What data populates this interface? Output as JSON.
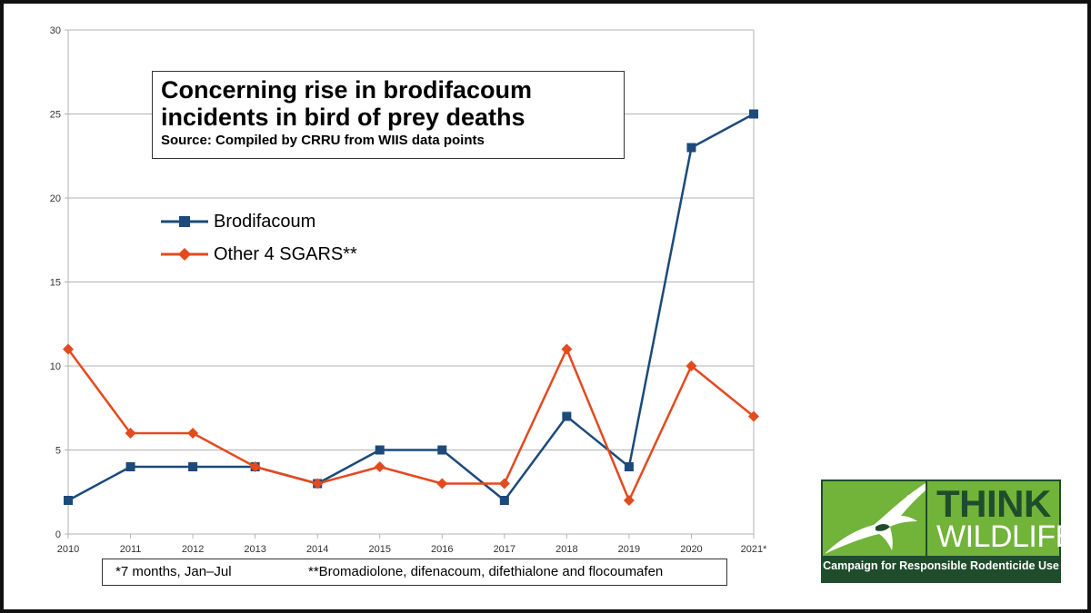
{
  "chart_data": {
    "type": "line",
    "title": "Concerning rise in brodifacoum incidents in bird of prey deaths",
    "title_lines": [
      "Concerning rise in brodifacoum",
      "incidents in bird of prey deaths"
    ],
    "subtitle": "Source: Compiled by CRRU from WIIS data points",
    "x": [
      "2010",
      "2011",
      "2012",
      "2013",
      "2014",
      "2015",
      "2016",
      "2017",
      "2018",
      "2019",
      "2020",
      "2021*"
    ],
    "y_ticks": [
      0,
      5,
      10,
      15,
      20,
      25,
      30
    ],
    "ylim": [
      0,
      30
    ],
    "grid": "horizontal",
    "legend_position": "upper-left inside plot",
    "series": [
      {
        "name": "Brodifacoum",
        "color": "#1c4a7a",
        "marker": "square",
        "values": [
          2,
          4,
          4,
          4,
          3,
          5,
          5,
          2,
          7,
          4,
          23,
          25
        ]
      },
      {
        "name": "Other 4 SGARS**",
        "color": "#e34a1e",
        "marker": "diamond",
        "values": [
          11,
          6,
          6,
          4,
          3,
          4,
          3,
          3,
          11,
          2,
          10,
          7
        ]
      }
    ],
    "footnotes": [
      "*7 months, Jan–Jul",
      "**Bromadiolone, difenacoum, difethialone and flocoumafen"
    ]
  },
  "logo": {
    "think": "THINK",
    "wildlife": "WILDLIFE",
    "caption": "Campaign for Responsible Rodenticide Use",
    "icon": "bird-of-prey-icon",
    "colors": {
      "dark_green": "#1f4d2c",
      "light_green": "#72b33a"
    }
  }
}
